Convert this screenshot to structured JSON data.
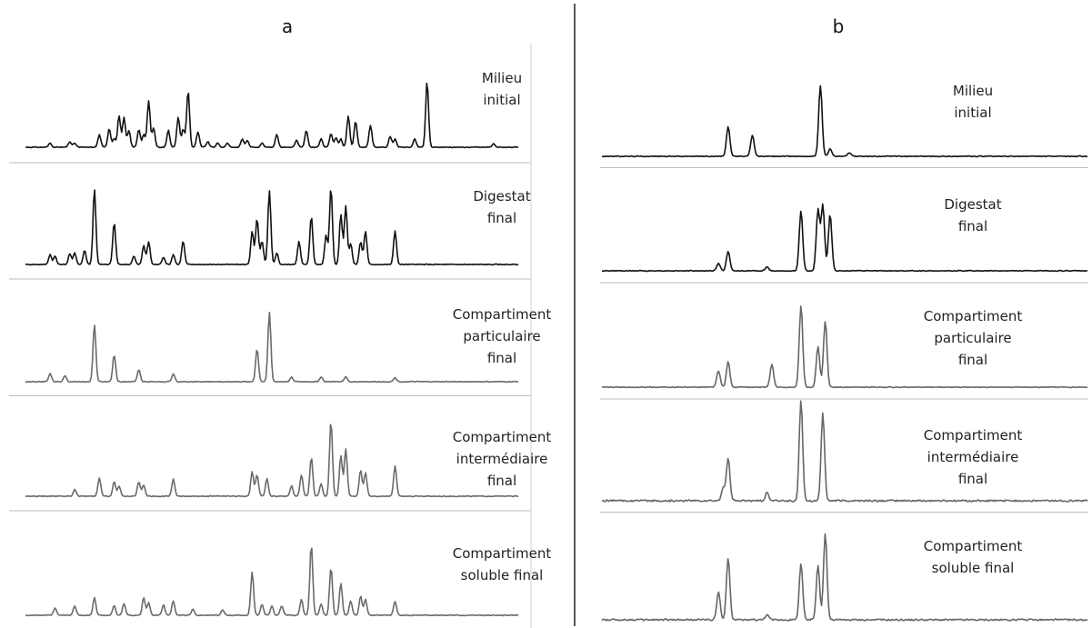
{
  "chart_data": [
    {
      "type": "line",
      "panel_label": "a",
      "style": {
        "ink_top": "#111111",
        "ink_bottom": "#6a6a6a",
        "baseline_color": "#bfbfbf",
        "separator_color": "#bdbdbd"
      },
      "series": [
        {
          "name": "Milieu initial",
          "peaks": [
            [
              0.05,
              0.06
            ],
            [
              0.09,
              0.08
            ],
            [
              0.1,
              0.06
            ],
            [
              0.15,
              0.18
            ],
            [
              0.17,
              0.27
            ],
            [
              0.18,
              0.13
            ],
            [
              0.19,
              0.46
            ],
            [
              0.2,
              0.43
            ],
            [
              0.21,
              0.24
            ],
            [
              0.23,
              0.26
            ],
            [
              0.24,
              0.18
            ],
            [
              0.25,
              0.67
            ],
            [
              0.26,
              0.28
            ],
            [
              0.29,
              0.25
            ],
            [
              0.31,
              0.44
            ],
            [
              0.32,
              0.26
            ],
            [
              0.33,
              0.82
            ],
            [
              0.35,
              0.22
            ],
            [
              0.37,
              0.08
            ],
            [
              0.39,
              0.06
            ],
            [
              0.41,
              0.06
            ],
            [
              0.44,
              0.12
            ],
            [
              0.45,
              0.1
            ],
            [
              0.48,
              0.06
            ],
            [
              0.51,
              0.19
            ],
            [
              0.55,
              0.1
            ],
            [
              0.57,
              0.24
            ],
            [
              0.6,
              0.12
            ],
            [
              0.62,
              0.2
            ],
            [
              0.63,
              0.14
            ],
            [
              0.64,
              0.12
            ],
            [
              0.655,
              0.45
            ],
            [
              0.67,
              0.38
            ],
            [
              0.7,
              0.32
            ],
            [
              0.74,
              0.16
            ],
            [
              0.75,
              0.12
            ],
            [
              0.79,
              0.12
            ],
            [
              0.815,
              0.95
            ],
            [
              0.95,
              0.05
            ]
          ]
        },
        {
          "name": "Digestat final",
          "peaks": [
            [
              0.05,
              0.12
            ],
            [
              0.06,
              0.1
            ],
            [
              0.09,
              0.13
            ],
            [
              0.1,
              0.14
            ],
            [
              0.12,
              0.17
            ],
            [
              0.14,
              0.9
            ],
            [
              0.18,
              0.5
            ],
            [
              0.22,
              0.1
            ],
            [
              0.24,
              0.23
            ],
            [
              0.25,
              0.27
            ],
            [
              0.28,
              0.09
            ],
            [
              0.3,
              0.12
            ],
            [
              0.32,
              0.28
            ],
            [
              0.46,
              0.4
            ],
            [
              0.47,
              0.55
            ],
            [
              0.48,
              0.28
            ],
            [
              0.495,
              0.88
            ],
            [
              0.51,
              0.14
            ],
            [
              0.555,
              0.28
            ],
            [
              0.58,
              0.58
            ],
            [
              0.61,
              0.35
            ],
            [
              0.62,
              0.92
            ],
            [
              0.64,
              0.6
            ],
            [
              0.65,
              0.7
            ],
            [
              0.66,
              0.25
            ],
            [
              0.68,
              0.27
            ],
            [
              0.69,
              0.4
            ],
            [
              0.75,
              0.4
            ]
          ]
        },
        {
          "name": "Compartiment particulaire final",
          "peaks": [
            [
              0.05,
              0.1
            ],
            [
              0.08,
              0.08
            ],
            [
              0.14,
              0.7
            ],
            [
              0.18,
              0.33
            ],
            [
              0.23,
              0.15
            ],
            [
              0.3,
              0.1
            ],
            [
              0.47,
              0.4
            ],
            [
              0.495,
              0.85
            ],
            [
              0.54,
              0.06
            ],
            [
              0.6,
              0.06
            ],
            [
              0.65,
              0.06
            ],
            [
              0.75,
              0.05
            ]
          ]
        },
        {
          "name": "Compartiment intermédiaire final",
          "peaks": [
            [
              0.1,
              0.08
            ],
            [
              0.15,
              0.22
            ],
            [
              0.18,
              0.18
            ],
            [
              0.19,
              0.12
            ],
            [
              0.23,
              0.18
            ],
            [
              0.24,
              0.14
            ],
            [
              0.3,
              0.21
            ],
            [
              0.46,
              0.3
            ],
            [
              0.47,
              0.26
            ],
            [
              0.49,
              0.22
            ],
            [
              0.54,
              0.13
            ],
            [
              0.56,
              0.26
            ],
            [
              0.58,
              0.48
            ],
            [
              0.6,
              0.15
            ],
            [
              0.62,
              0.92
            ],
            [
              0.64,
              0.5
            ],
            [
              0.65,
              0.58
            ],
            [
              0.68,
              0.32
            ],
            [
              0.69,
              0.29
            ],
            [
              0.75,
              0.37
            ]
          ]
        },
        {
          "name": "Compartiment soluble final",
          "peaks": [
            [
              0.06,
              0.09
            ],
            [
              0.1,
              0.12
            ],
            [
              0.14,
              0.22
            ],
            [
              0.18,
              0.12
            ],
            [
              0.2,
              0.15
            ],
            [
              0.24,
              0.22
            ],
            [
              0.25,
              0.16
            ],
            [
              0.28,
              0.13
            ],
            [
              0.3,
              0.18
            ],
            [
              0.34,
              0.08
            ],
            [
              0.4,
              0.07
            ],
            [
              0.46,
              0.54
            ],
            [
              0.48,
              0.14
            ],
            [
              0.5,
              0.12
            ],
            [
              0.52,
              0.12
            ],
            [
              0.56,
              0.2
            ],
            [
              0.58,
              0.88
            ],
            [
              0.6,
              0.14
            ],
            [
              0.62,
              0.6
            ],
            [
              0.64,
              0.4
            ],
            [
              0.66,
              0.18
            ],
            [
              0.68,
              0.24
            ],
            [
              0.69,
              0.2
            ],
            [
              0.75,
              0.17
            ]
          ]
        }
      ]
    },
    {
      "type": "line",
      "panel_label": "b",
      "style": {
        "ink_top": "#111111",
        "ink_bottom": "#666666",
        "baseline_color": "#bfbfbf"
      },
      "series": [
        {
          "name": "Milieu initial",
          "peaks": [
            [
              0.26,
              0.4
            ],
            [
              0.31,
              0.28
            ],
            [
              0.45,
              0.95
            ],
            [
              0.47,
              0.1
            ],
            [
              0.51,
              0.05
            ]
          ]
        },
        {
          "name": "Digestat final",
          "peaks": [
            [
              0.24,
              0.1
            ],
            [
              0.26,
              0.26
            ],
            [
              0.34,
              0.05
            ],
            [
              0.41,
              0.8
            ],
            [
              0.445,
              0.82
            ],
            [
              0.455,
              0.88
            ],
            [
              0.47,
              0.76
            ]
          ]
        },
        {
          "name": "Compartiment particulaire final",
          "peaks": [
            [
              0.24,
              0.2
            ],
            [
              0.26,
              0.31
            ],
            [
              0.35,
              0.28
            ],
            [
              0.41,
              1.0
            ],
            [
              0.445,
              0.5
            ],
            [
              0.46,
              0.81
            ]
          ]
        },
        {
          "name": "Compartiment intermédiaire final",
          "peaks": [
            [
              0.25,
              0.13
            ],
            [
              0.26,
              0.43
            ],
            [
              0.34,
              0.08
            ],
            [
              0.41,
              1.0
            ],
            [
              0.455,
              0.88
            ]
          ]
        },
        {
          "name": "Compartiment soluble final",
          "peaks": [
            [
              0.24,
              0.3
            ],
            [
              0.26,
              0.68
            ],
            [
              0.34,
              0.06
            ],
            [
              0.41,
              0.62
            ],
            [
              0.445,
              0.6
            ],
            [
              0.46,
              0.95
            ]
          ]
        }
      ]
    }
  ]
}
